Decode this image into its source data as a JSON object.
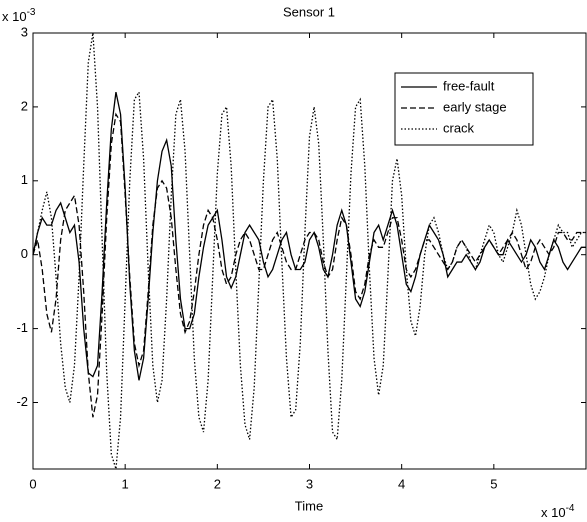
{
  "chart_data": {
    "type": "line",
    "title": "Sensor 1",
    "x_label": "Time",
    "x_multiplier": {
      "base": "x 10",
      "exponent": "-4"
    },
    "y_multiplier": {
      "base": "x 10",
      "exponent": "-3"
    },
    "xlim": [
      0,
      6
    ],
    "ylim": [
      -2.9,
      3
    ],
    "xticks": [
      0,
      1,
      2,
      3,
      4,
      5
    ],
    "yticks": [
      -2,
      -1,
      0,
      1,
      2,
      3
    ],
    "legend": "top-right",
    "grid": false,
    "x": [
      0,
      0.05,
      0.1,
      0.15,
      0.2,
      0.25,
      0.3,
      0.35,
      0.4,
      0.45,
      0.5,
      0.55,
      0.6,
      0.65,
      0.7,
      0.75,
      0.8,
      0.85,
      0.9,
      0.95,
      1,
      1.05,
      1.1,
      1.15,
      1.2,
      1.25,
      1.3,
      1.35,
      1.4,
      1.45,
      1.5,
      1.55,
      1.6,
      1.65,
      1.7,
      1.75,
      1.8,
      1.85,
      1.9,
      1.95,
      2,
      2.05,
      2.1,
      2.15,
      2.2,
      2.25,
      2.3,
      2.35,
      2.4,
      2.45,
      2.5,
      2.55,
      2.6,
      2.65,
      2.7,
      2.75,
      2.8,
      2.85,
      2.9,
      2.95,
      3,
      3.05,
      3.1,
      3.15,
      3.2,
      3.25,
      3.3,
      3.35,
      3.4,
      3.45,
      3.5,
      3.55,
      3.6,
      3.65,
      3.7,
      3.75,
      3.8,
      3.85,
      3.9,
      3.95,
      4,
      4.05,
      4.1,
      4.15,
      4.2,
      4.25,
      4.3,
      4.35,
      4.4,
      4.45,
      4.5,
      4.55,
      4.6,
      4.65,
      4.7,
      4.75,
      4.8,
      4.85,
      4.9,
      4.95,
      5,
      5.05,
      5.1,
      5.15,
      5.2,
      5.25,
      5.3,
      5.35,
      5.4,
      5.45,
      5.5,
      5.55,
      5.6,
      5.65,
      5.7,
      5.75,
      5.8,
      5.85,
      5.9,
      5.95,
      6
    ],
    "series": [
      {
        "name": "free-fault",
        "color": "#000000",
        "dash": "solid",
        "values": [
          0,
          0.3,
          0.5,
          0.4,
          0.4,
          0.6,
          0.7,
          0.5,
          0.3,
          0.4,
          -0.1,
          -1.0,
          -1.6,
          -1.65,
          -1.5,
          -0.5,
          0.7,
          1.7,
          2.2,
          1.9,
          0.9,
          -0.4,
          -1.3,
          -1.7,
          -1.4,
          -0.6,
          0.3,
          1.0,
          1.4,
          1.55,
          1.2,
          0.2,
          -0.6,
          -1.0,
          -1.0,
          -0.8,
          -0.3,
          0.1,
          0.4,
          0.5,
          0.6,
          0.2,
          -0.3,
          -0.45,
          -0.3,
          0.0,
          0.3,
          0.4,
          0.3,
          0.2,
          -0.1,
          -0.3,
          -0.2,
          0.0,
          0.2,
          0.3,
          0.0,
          -0.2,
          -0.2,
          -0.1,
          0.2,
          0.3,
          0.1,
          -0.2,
          -0.3,
          0.0,
          0.4,
          0.6,
          0.4,
          -0.1,
          -0.6,
          -0.7,
          -0.5,
          -0.1,
          0.3,
          0.4,
          0.2,
          0.4,
          0.6,
          0.4,
          0.0,
          -0.4,
          -0.5,
          -0.3,
          0.0,
          0.2,
          0.4,
          0.3,
          0.2,
          0.0,
          -0.3,
          -0.2,
          -0.1,
          -0.1,
          0.0,
          -0.1,
          -0.2,
          -0.1,
          0.1,
          0.2,
          0.1,
          0.0,
          0.0,
          0.2,
          0.1,
          0.0,
          -0.1,
          0.0,
          0.2,
          0.1,
          -0.1,
          -0.2,
          0.0,
          0.2,
          0.1,
          -0.1,
          -0.2,
          -0.1,
          0.0,
          0.1,
          0.1
        ]
      },
      {
        "name": "early stage",
        "color": "#000000",
        "dash": "dashed",
        "values": [
          0,
          0.2,
          -0.2,
          -0.8,
          -1.05,
          -0.6,
          0.2,
          0.6,
          0.7,
          0.8,
          0.4,
          -0.5,
          -1.6,
          -2.2,
          -1.9,
          -0.8,
          0.5,
          1.5,
          1.9,
          1.8,
          0.8,
          -0.3,
          -1.2,
          -1.5,
          -1.3,
          -0.5,
          0.4,
          0.9,
          1.0,
          0.9,
          0.5,
          -0.2,
          -0.8,
          -1.05,
          -0.9,
          -0.5,
          0.0,
          0.4,
          0.6,
          0.5,
          0.2,
          -0.2,
          -0.4,
          -0.3,
          0.0,
          0.2,
          0.3,
          0.2,
          0.0,
          -0.2,
          -0.2,
          0.0,
          0.2,
          0.3,
          0.1,
          -0.1,
          -0.2,
          -0.2,
          0.0,
          0.2,
          0.3,
          0.3,
          0.2,
          -0.1,
          -0.3,
          -0.2,
          0.2,
          0.5,
          0.4,
          0.0,
          -0.5,
          -0.6,
          -0.4,
          0.0,
          0.2,
          0.1,
          0.1,
          0.3,
          0.5,
          0.5,
          0.2,
          -0.2,
          -0.3,
          -0.2,
          0.0,
          0.2,
          0.2,
          0.1,
          0.0,
          -0.1,
          -0.2,
          -0.1,
          0.1,
          0.2,
          0.1,
          0.0,
          -0.1,
          0.0,
          0.1,
          0.2,
          0.1,
          0.0,
          0.1,
          0.2,
          0.3,
          0.2,
          0.0,
          -0.2,
          -0.1,
          0.1,
          0.2,
          0.1,
          0.0,
          0.1,
          0.3,
          0.3,
          0.2,
          0.2,
          0.3,
          0.3,
          0.3
        ]
      },
      {
        "name": "crack",
        "color": "#000000",
        "dash": "dotted",
        "values": [
          0,
          0.3,
          0.6,
          0.85,
          0.5,
          -0.3,
          -1.2,
          -1.8,
          -2.0,
          -1.5,
          -0.3,
          1.2,
          2.6,
          3.0,
          2.0,
          0.2,
          -1.6,
          -2.7,
          -2.9,
          -2.2,
          -0.6,
          1.0,
          2.1,
          2.2,
          1.3,
          -0.2,
          -1.5,
          -2.0,
          -1.7,
          -0.6,
          0.8,
          1.9,
          2.1,
          1.4,
          0.0,
          -1.4,
          -2.2,
          -2.4,
          -1.7,
          -0.3,
          1.1,
          1.9,
          2.0,
          1.2,
          -0.2,
          -1.5,
          -2.3,
          -2.5,
          -1.8,
          -0.4,
          1.0,
          2.0,
          2.1,
          1.3,
          -0.1,
          -1.4,
          -2.2,
          -2.1,
          -1.2,
          0.3,
          1.6,
          2.0,
          1.5,
          0.2,
          -1.3,
          -2.4,
          -2.5,
          -1.7,
          -0.3,
          1.1,
          2.0,
          2.1,
          1.2,
          -0.2,
          -1.4,
          -1.9,
          -1.5,
          -0.3,
          1.0,
          1.3,
          0.8,
          -0.2,
          -0.9,
          -1.1,
          -0.7,
          0.0,
          0.4,
          0.5,
          0.3,
          0.0,
          -0.2,
          -0.1,
          0.1,
          0.2,
          0.1,
          -0.1,
          -0.2,
          0.0,
          0.2,
          0.4,
          0.3,
          0.0,
          -0.1,
          0.1,
          0.3,
          0.6,
          0.4,
          0.0,
          -0.4,
          -0.6,
          -0.5,
          -0.3,
          0.0,
          0.2,
          0.4,
          0.3,
          0.3,
          0.1,
          0.2,
          0.3,
          0.3
        ]
      }
    ]
  }
}
